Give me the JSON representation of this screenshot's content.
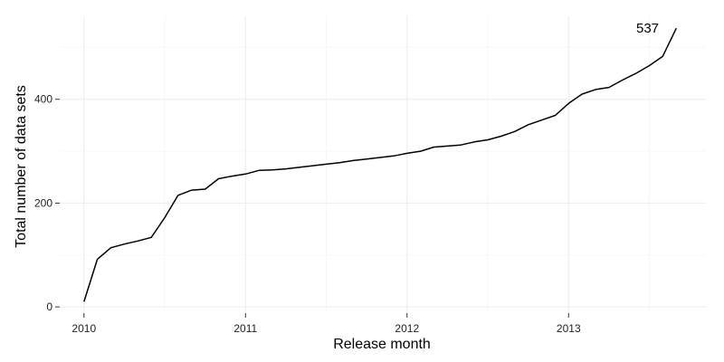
{
  "chart_data": {
    "type": "line",
    "title": "",
    "xlabel": "Release month",
    "ylabel": "Total number of data sets",
    "x_unit": "year",
    "xlim": [
      2009.85,
      2013.85
    ],
    "ylim": [
      -12,
      560
    ],
    "x_ticks": [
      2010,
      2011,
      2012,
      2013
    ],
    "x_tick_labels": [
      "2010",
      "2011",
      "2012",
      "2013"
    ],
    "y_ticks": [
      0,
      200,
      400
    ],
    "y_tick_labels": [
      "0",
      "200",
      "400"
    ],
    "grid": true,
    "legend": "none",
    "line_color": "#000000",
    "annotations": [
      {
        "text": "537",
        "x": 2013.5,
        "y": 537
      }
    ],
    "series": [
      {
        "x": [
          2010.0,
          2010.083,
          2010.167,
          2010.25,
          2010.333,
          2010.417,
          2010.5,
          2010.583,
          2010.667,
          2010.75,
          2010.833,
          2010.917,
          2011.0,
          2011.083,
          2011.167,
          2011.25,
          2011.333,
          2011.417,
          2011.5,
          2011.583,
          2011.667,
          2011.75,
          2011.833,
          2011.917,
          2012.0,
          2012.083,
          2012.167,
          2012.25,
          2012.333,
          2012.417,
          2012.5,
          2012.583,
          2012.667,
          2012.75,
          2012.833,
          2012.917,
          2013.0,
          2013.083,
          2013.167,
          2013.25,
          2013.333,
          2013.417,
          2013.5,
          2013.583,
          2013.667
        ],
        "y": [
          10,
          92,
          114,
          121,
          127,
          134,
          172,
          215,
          225,
          227,
          247,
          252,
          256,
          263,
          264,
          266,
          269,
          272,
          275,
          278,
          282,
          285,
          288,
          291,
          296,
          300,
          308,
          310,
          312,
          318,
          322,
          329,
          338,
          351,
          360,
          369,
          392,
          410,
          419,
          423,
          437,
          450,
          465,
          483,
          537
        ]
      }
    ]
  }
}
